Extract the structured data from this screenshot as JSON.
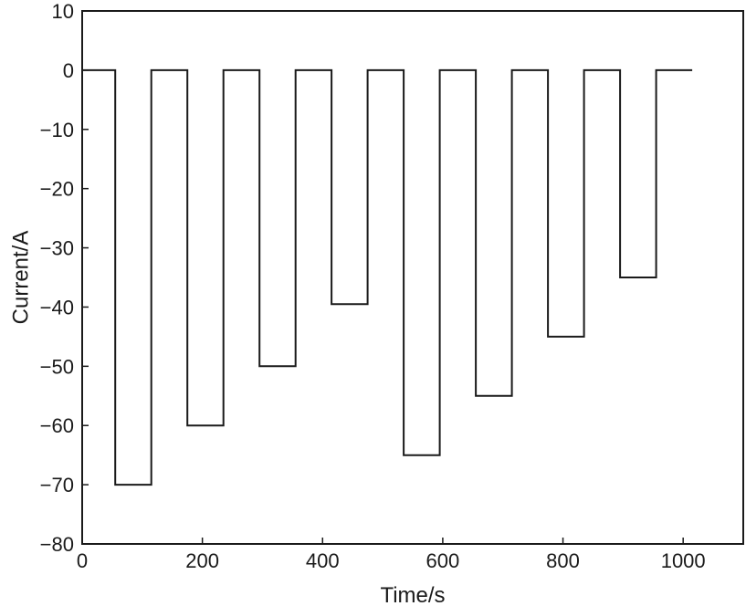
{
  "chart_data": {
    "type": "line",
    "xlabel": "Time/s",
    "ylabel": "Current/A",
    "xlim": [
      0,
      1100
    ],
    "ylim": [
      -80,
      10
    ],
    "x_ticks": [
      0,
      200,
      400,
      600,
      800,
      1000
    ],
    "y_ticks": [
      10,
      0,
      -10,
      -20,
      -30,
      -40,
      -50,
      -60,
      -70,
      -80
    ],
    "x_tick_labels": [
      "0",
      "200",
      "400",
      "600",
      "800",
      "1000"
    ],
    "y_tick_labels": [
      "10",
      "0",
      "−10",
      "−20",
      "−30",
      "−40",
      "−50",
      "−60",
      "−70",
      "−80"
    ],
    "grid": false,
    "series": [
      {
        "color": "#1a1a1a",
        "x": [
          0,
          55,
          55,
          115,
          115,
          175,
          175,
          235,
          235,
          295,
          295,
          355,
          355,
          415,
          415,
          475,
          475,
          535,
          535,
          595,
          595,
          655,
          655,
          715,
          715,
          775,
          775,
          835,
          835,
          895,
          895,
          955,
          955,
          1015
        ],
        "y": [
          0,
          0,
          -70,
          -70,
          0,
          0,
          -60,
          -60,
          0,
          0,
          -50,
          -50,
          0,
          0,
          -39.5,
          -39.5,
          0,
          0,
          -65,
          -65,
          0,
          0,
          -55,
          -55,
          0,
          0,
          -45,
          -45,
          0,
          0,
          -35,
          -35,
          0,
          0
        ]
      }
    ]
  }
}
